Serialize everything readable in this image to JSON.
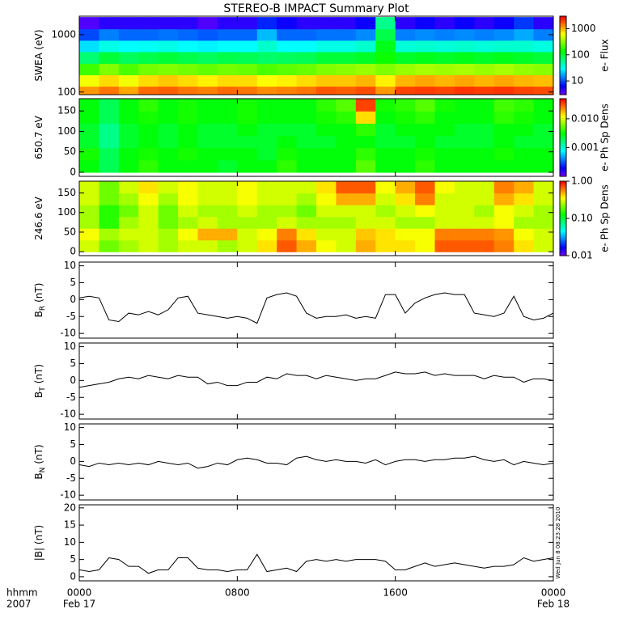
{
  "chart_data": [
    {
      "type": "heatmap",
      "title": "STEREO-B IMPACT Summary Plot",
      "ylabel": "SWEA (eV)",
      "colorbar_label": "e- Flux",
      "log_y": true,
      "ylim": [
        90,
        2100
      ],
      "yticks": [
        100,
        1000
      ],
      "xlim": [
        0,
        24
      ],
      "xticks": [
        0,
        8,
        16,
        24
      ],
      "log_z": true,
      "zlim": [
        3,
        3000
      ],
      "zticks": [
        10,
        100,
        1000
      ],
      "x": [
        0.5,
        1.5,
        2.5,
        3.5,
        4.5,
        5.5,
        6.5,
        7.5,
        8.5,
        9.5,
        10.5,
        11.5,
        12.5,
        13.5,
        14.5,
        15.5,
        16.5,
        17.5,
        18.5,
        19.5,
        20.5,
        21.5,
        22.5,
        23.5
      ],
      "y": [
        100,
        160,
        250,
        400,
        640,
        1000,
        1600
      ],
      "values": [
        [
          1200,
          1500,
          1100,
          1600,
          1700,
          1500,
          1400,
          1600,
          1500,
          1300,
          1400,
          1500,
          1800,
          1700,
          1900,
          1200,
          2000,
          2100,
          2000,
          2200,
          2100,
          2200,
          2000,
          1900
        ],
        [
          600,
          800,
          600,
          800,
          900,
          800,
          700,
          800,
          800,
          650,
          700,
          800,
          900,
          900,
          1000,
          700,
          1000,
          1100,
          1000,
          1100,
          1000,
          1100,
          1000,
          950
        ],
        [
          200,
          300,
          220,
          280,
          300,
          280,
          250,
          280,
          260,
          220,
          240,
          260,
          300,
          320,
          350,
          300,
          350,
          380,
          360,
          380,
          350,
          380,
          340,
          320
        ],
        [
          70,
          100,
          80,
          90,
          100,
          90,
          80,
          90,
          85,
          75,
          80,
          85,
          100,
          100,
          110,
          150,
          110,
          120,
          110,
          120,
          110,
          120,
          110,
          100
        ],
        [
          25,
          35,
          30,
          32,
          35,
          30,
          28,
          30,
          30,
          40,
          30,
          30,
          35,
          35,
          40,
          120,
          38,
          40,
          38,
          40,
          38,
          40,
          40,
          36
        ],
        [
          10,
          14,
          12,
          12,
          13,
          12,
          11,
          12,
          12,
          20,
          12,
          12,
          13,
          13,
          15,
          90,
          14,
          15,
          14,
          15,
          14,
          15,
          18,
          14
        ],
        [
          4,
          5,
          5,
          5,
          5,
          5,
          4,
          5,
          5,
          8,
          6,
          5,
          5,
          5,
          6,
          60,
          5,
          6,
          5,
          6,
          5,
          6,
          9,
          5
        ]
      ]
    },
    {
      "type": "heatmap",
      "ylabel": "650.7 eV",
      "colorbar_label": "e- Ph Sp Dens",
      "ylim": [
        -10,
        180
      ],
      "yticks": [
        0,
        50,
        100,
        150
      ],
      "xlim": [
        0,
        24
      ],
      "xticks": [
        0,
        8,
        16,
        24
      ],
      "log_z": true,
      "zlim": [
        0.0001,
        0.05
      ],
      "zticks": [
        0.001,
        {
          "value": 0.01,
          "label": "0.010"
        }
      ],
      "x": [
        0.5,
        1.5,
        2.5,
        3.5,
        4.5,
        5.5,
        6.5,
        7.5,
        8.5,
        9.5,
        10.5,
        11.5,
        12.5,
        13.5,
        14.5,
        15.5,
        16.5,
        17.5,
        18.5,
        19.5,
        20.5,
        21.5,
        22.5,
        23.5
      ],
      "y": [
        15,
        45,
        75,
        105,
        135,
        165
      ],
      "values": [
        [
          0.003,
          0.002,
          0.003,
          0.004,
          0.003,
          0.003,
          0.003,
          0.0025,
          0.003,
          0.003,
          0.004,
          0.003,
          0.003,
          0.003,
          0.005,
          0.003,
          0.003,
          0.004,
          0.003,
          0.003,
          0.003,
          0.003,
          0.003,
          0.003
        ],
        [
          0.0035,
          0.002,
          0.003,
          0.0035,
          0.003,
          0.0035,
          0.003,
          0.003,
          0.003,
          0.0025,
          0.0035,
          0.003,
          0.003,
          0.003,
          0.004,
          0.003,
          0.003,
          0.0035,
          0.003,
          0.003,
          0.003,
          0.0035,
          0.003,
          0.003
        ],
        [
          0.0025,
          0.0015,
          0.0025,
          0.003,
          0.0025,
          0.003,
          0.0025,
          0.0025,
          0.0025,
          0.0025,
          0.003,
          0.0025,
          0.0025,
          0.003,
          0.003,
          0.0025,
          0.0025,
          0.003,
          0.0025,
          0.0025,
          0.0025,
          0.003,
          0.0025,
          0.0025
        ],
        [
          0.0025,
          0.0015,
          0.0025,
          0.003,
          0.0025,
          0.003,
          0.0025,
          0.0025,
          0.003,
          0.0025,
          0.0025,
          0.0025,
          0.003,
          0.003,
          0.004,
          0.0025,
          0.003,
          0.003,
          0.003,
          0.0025,
          0.0025,
          0.003,
          0.003,
          0.0025
        ],
        [
          0.003,
          0.002,
          0.003,
          0.0035,
          0.003,
          0.0035,
          0.003,
          0.003,
          0.0035,
          0.003,
          0.003,
          0.003,
          0.0035,
          0.004,
          0.015,
          0.003,
          0.0035,
          0.004,
          0.003,
          0.003,
          0.003,
          0.004,
          0.0035,
          0.003
        ],
        [
          0.003,
          0.002,
          0.003,
          0.004,
          0.003,
          0.0035,
          0.003,
          0.003,
          0.0035,
          0.003,
          0.003,
          0.003,
          0.004,
          0.005,
          0.035,
          0.0035,
          0.004,
          0.005,
          0.0035,
          0.003,
          0.003,
          0.0045,
          0.004,
          0.003
        ]
      ]
    },
    {
      "type": "heatmap",
      "ylabel": "246.6 eV",
      "colorbar_label": "e- Ph Sp Dens",
      "ylim": [
        -10,
        180
      ],
      "yticks": [
        0,
        50,
        100,
        150
      ],
      "xlim": [
        0,
        24
      ],
      "xticks": [
        0,
        8,
        16,
        24
      ],
      "log_z": true,
      "zlim": [
        0.01,
        1
      ],
      "zticks": [
        0.01,
        {
          "value": 0.1,
          "label": "0.10"
        },
        {
          "value": 1,
          "label": "1.00"
        }
      ],
      "x": [
        0.5,
        1.5,
        2.5,
        3.5,
        4.5,
        5.5,
        6.5,
        7.5,
        8.5,
        9.5,
        10.5,
        11.5,
        12.5,
        13.5,
        14.5,
        15.5,
        16.5,
        17.5,
        18.5,
        19.5,
        20.5,
        21.5,
        22.5,
        23.5
      ],
      "y": [
        15,
        45,
        75,
        105,
        135,
        165
      ],
      "values": [
        [
          0.3,
          0.2,
          0.25,
          0.3,
          0.25,
          0.3,
          0.3,
          0.25,
          0.3,
          0.4,
          0.7,
          0.5,
          0.35,
          0.3,
          0.5,
          0.4,
          0.4,
          0.35,
          0.7,
          0.7,
          0.7,
          0.6,
          0.4,
          0.3
        ],
        [
          0.35,
          0.25,
          0.3,
          0.3,
          0.25,
          0.35,
          0.5,
          0.5,
          0.3,
          0.35,
          0.6,
          0.4,
          0.3,
          0.3,
          0.45,
          0.4,
          0.35,
          0.35,
          0.6,
          0.6,
          0.6,
          0.55,
          0.35,
          0.3
        ],
        [
          0.25,
          0.15,
          0.25,
          0.3,
          0.2,
          0.25,
          0.3,
          0.25,
          0.25,
          0.25,
          0.3,
          0.25,
          0.25,
          0.25,
          0.3,
          0.3,
          0.25,
          0.25,
          0.3,
          0.3,
          0.3,
          0.35,
          0.25,
          0.25
        ],
        [
          0.25,
          0.15,
          0.2,
          0.3,
          0.2,
          0.3,
          0.25,
          0.25,
          0.3,
          0.25,
          0.25,
          0.2,
          0.3,
          0.3,
          0.3,
          0.25,
          0.3,
          0.35,
          0.3,
          0.3,
          0.25,
          0.35,
          0.3,
          0.25
        ],
        [
          0.3,
          0.2,
          0.25,
          0.35,
          0.25,
          0.35,
          0.3,
          0.3,
          0.35,
          0.3,
          0.3,
          0.25,
          0.35,
          0.5,
          0.5,
          0.3,
          0.4,
          0.6,
          0.3,
          0.3,
          0.3,
          0.5,
          0.4,
          0.3
        ],
        [
          0.3,
          0.2,
          0.3,
          0.4,
          0.3,
          0.35,
          0.3,
          0.3,
          0.35,
          0.3,
          0.3,
          0.3,
          0.4,
          0.7,
          0.7,
          0.35,
          0.5,
          0.7,
          0.35,
          0.3,
          0.3,
          0.6,
          0.5,
          0.3
        ]
      ]
    },
    {
      "type": "line",
      "ylabel": "B",
      "ylabel_sub": "R",
      "ylabel_unit": "(nT)",
      "color": "#000000",
      "ylim": [
        -11.4,
        11.1
      ],
      "yticks": [
        -10,
        -5,
        0,
        5,
        10
      ],
      "xlim": [
        0,
        24
      ],
      "xticks": [
        0,
        8,
        16,
        24
      ],
      "x": [
        0,
        0.5,
        1,
        1.5,
        2,
        2.5,
        3,
        3.5,
        4,
        4.5,
        5,
        5.5,
        6,
        6.5,
        7,
        7.5,
        8,
        8.5,
        9,
        9.5,
        10,
        10.5,
        11,
        11.5,
        12,
        12.5,
        13,
        13.5,
        14,
        14.5,
        15,
        15.5,
        16,
        16.5,
        17,
        17.5,
        18,
        18.5,
        19,
        19.5,
        20,
        20.5,
        21,
        21.5,
        22,
        22.5,
        23,
        23.5,
        24
      ],
      "values": [
        0.5,
        1,
        0.5,
        -6,
        -6.5,
        -4,
        -4.5,
        -3.5,
        -4.5,
        -3,
        0.5,
        1,
        -4,
        -4.5,
        -5,
        -5.5,
        -5,
        -5.5,
        -7,
        0.5,
        1.5,
        2,
        1,
        -4,
        -5.5,
        -5,
        -5,
        -4.5,
        -5.5,
        -5,
        -5.5,
        1.5,
        1.5,
        -4,
        -1,
        0.5,
        1.5,
        2,
        1.5,
        1.5,
        -4,
        -4.5,
        -5,
        -4,
        1,
        -5,
        -6,
        -5.5,
        -4
      ]
    },
    {
      "type": "line",
      "ylabel": "B",
      "ylabel_sub": "T",
      "ylabel_unit": "(nT)",
      "color": "#000000",
      "ylim": [
        -11.4,
        11.1
      ],
      "yticks": [
        -10,
        -5,
        0,
        5,
        10
      ],
      "xlim": [
        0,
        24
      ],
      "xticks": [
        0,
        8,
        16,
        24
      ],
      "x": [
        0,
        0.5,
        1,
        1.5,
        2,
        2.5,
        3,
        3.5,
        4,
        4.5,
        5,
        5.5,
        6,
        6.5,
        7,
        7.5,
        8,
        8.5,
        9,
        9.5,
        10,
        10.5,
        11,
        11.5,
        12,
        12.5,
        13,
        13.5,
        14,
        14.5,
        15,
        15.5,
        16,
        16.5,
        17,
        17.5,
        18,
        18.5,
        19,
        19.5,
        20,
        20.5,
        21,
        21.5,
        22,
        22.5,
        23,
        23.5,
        24
      ],
      "values": [
        -2,
        -1.5,
        -1,
        -0.5,
        0.5,
        1,
        0.5,
        1.5,
        1,
        0.5,
        1.5,
        1,
        1,
        -1,
        -0.5,
        -1.5,
        -1.5,
        -0.5,
        -0.5,
        1,
        0.5,
        2,
        1.5,
        1.5,
        0.5,
        1.5,
        1,
        0.5,
        0,
        0.5,
        0.5,
        1.5,
        2.5,
        2,
        2,
        2.5,
        1.5,
        2,
        1.5,
        1.5,
        1.5,
        0.5,
        1.5,
        1,
        1,
        -0.5,
        0.5,
        0.5,
        0
      ]
    },
    {
      "type": "line",
      "ylabel": "B",
      "ylabel_sub": "N",
      "ylabel_unit": "(nT)",
      "color": "#000000",
      "ylim": [
        -11.4,
        11.1
      ],
      "yticks": [
        -10,
        -5,
        0,
        5,
        10
      ],
      "xlim": [
        0,
        24
      ],
      "xticks": [
        0,
        8,
        16,
        24
      ],
      "x": [
        0,
        0.5,
        1,
        1.5,
        2,
        2.5,
        3,
        3.5,
        4,
        4.5,
        5,
        5.5,
        6,
        6.5,
        7,
        7.5,
        8,
        8.5,
        9,
        9.5,
        10,
        10.5,
        11,
        11.5,
        12,
        12.5,
        13,
        13.5,
        14,
        14.5,
        15,
        15.5,
        16,
        16.5,
        17,
        17.5,
        18,
        18.5,
        19,
        19.5,
        20,
        20.5,
        21,
        21.5,
        22,
        22.5,
        23,
        23.5,
        24
      ],
      "values": [
        -1,
        -1.5,
        -0.5,
        -1,
        -0.5,
        -1,
        -0.5,
        -1,
        0,
        -0.5,
        -1,
        -0.5,
        -2,
        -1.5,
        -0.5,
        -1,
        0.5,
        1,
        0.5,
        -0.5,
        -0.5,
        -1,
        1,
        1.5,
        0.5,
        0,
        0.5,
        0,
        0,
        -0.5,
        0.5,
        -1,
        0,
        0.5,
        0.5,
        0,
        0.5,
        0.5,
        1,
        1,
        1.5,
        0.5,
        0,
        0.5,
        -1,
        0,
        -0.5,
        -1,
        -0.5
      ]
    },
    {
      "type": "line",
      "ylabel": "|B| (nT)",
      "color": "#000000",
      "ylim": [
        -1.2,
        20.9
      ],
      "yticks": [
        0,
        5,
        10,
        15,
        20
      ],
      "xlim": [
        0,
        24
      ],
      "xticks": [
        {
          "value": 0,
          "label": "0000"
        },
        {
          "value": 8,
          "label": "0800"
        },
        {
          "value": 16,
          "label": "1600"
        },
        {
          "value": 24,
          "label": "0000"
        }
      ],
      "x_date_labels": [
        {
          "value": 0,
          "label": "Feb 17"
        },
        {
          "value": 24,
          "label": "Feb 18"
        }
      ],
      "x_axis_label": [
        "hhmm",
        "2007"
      ],
      "timestamp": "Wed Jun  8 08:23:28 2010",
      "x": [
        0,
        0.5,
        1,
        1.5,
        2,
        2.5,
        3,
        3.5,
        4,
        4.5,
        5,
        5.5,
        6,
        6.5,
        7,
        7.5,
        8,
        8.5,
        9,
        9.5,
        10,
        10.5,
        11,
        11.5,
        12,
        12.5,
        13,
        13.5,
        14,
        14.5,
        15,
        15.5,
        16,
        16.5,
        17,
        17.5,
        18,
        18.5,
        19,
        19.5,
        20,
        20.5,
        21,
        21.5,
        22,
        22.5,
        23,
        23.5,
        24
      ],
      "values": [
        2,
        1.5,
        2,
        5.5,
        5,
        3,
        3,
        1,
        2,
        2,
        5.5,
        5.5,
        2.5,
        2,
        2,
        1.5,
        2,
        2,
        6.5,
        1.5,
        2,
        2.5,
        1.5,
        4.5,
        5,
        4.5,
        5,
        4.5,
        5,
        5,
        5,
        4.5,
        2,
        2,
        3,
        4,
        3,
        3.5,
        4,
        3.5,
        3,
        2.5,
        3,
        3,
        3.5,
        5.5,
        4.5,
        5,
        5.5
      ]
    }
  ]
}
